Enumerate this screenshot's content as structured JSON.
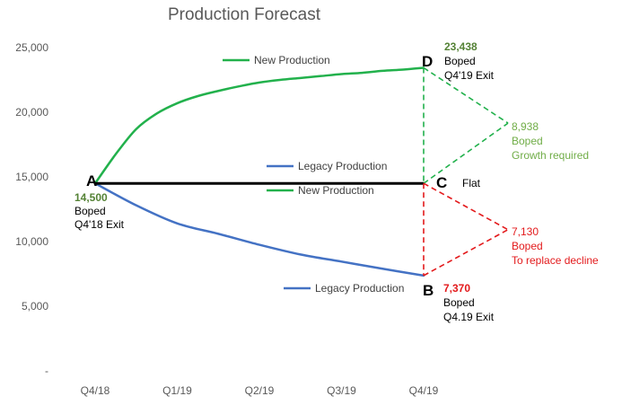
{
  "chart_data": {
    "type": "line",
    "title": "Production Forecast",
    "categories": [
      "Q4/18",
      "Q1/19",
      "Q2/19",
      "Q3/19",
      "Q4/19"
    ],
    "y_ticks": [
      "-",
      "5,000",
      "10,000",
      "15,000",
      "20,000",
      "25,000"
    ],
    "ylim": [
      0,
      25000
    ],
    "grid": false,
    "series": [
      {
        "name": "New Production",
        "color": "#22b14c",
        "x": [
          0,
          0.25,
          0.5,
          0.75,
          1,
          1.25,
          1.5,
          1.75,
          2,
          2.25,
          2.5,
          2.75,
          3,
          3.25,
          3.5,
          3.75,
          4
        ],
        "values": [
          14500,
          16750,
          18700,
          19900,
          20700,
          21250,
          21650,
          22000,
          22300,
          22500,
          22650,
          22800,
          22950,
          23050,
          23200,
          23300,
          23438
        ]
      },
      {
        "name": "Legacy Production",
        "color": "#4472c4",
        "x": [
          0,
          0.5,
          1,
          1.5,
          2,
          2.5,
          3,
          3.5,
          4
        ],
        "values": [
          14500,
          12800,
          11400,
          10600,
          9750,
          9000,
          8450,
          7900,
          7370
        ]
      },
      {
        "name": "Flat",
        "color": "#000000",
        "x": [
          0,
          4
        ],
        "values": [
          14500,
          14500
        ]
      }
    ],
    "legends": [
      {
        "text": "New Production",
        "color": "#22b14c"
      },
      {
        "text": "Legacy Production",
        "color": "#4472c4"
      },
      {
        "text": "New Production",
        "color": "#22b14c"
      },
      {
        "text": "Legacy Production",
        "color": "#4472c4"
      }
    ],
    "points": {
      "A": "A",
      "B": "B",
      "C": "C",
      "D": "D"
    },
    "annotations": {
      "a": {
        "value": "14,500",
        "line1": "Boped",
        "line2": "Q4'18 Exit"
      },
      "d": {
        "value": "23,438",
        "line1": "Boped",
        "line2": "Q4'19  Exit"
      },
      "b": {
        "value": "7,370",
        "line1": "Boped",
        "line2": "Q4.19 Exit"
      },
      "c": {
        "text": "Flat"
      },
      "growth": {
        "value": "8,938",
        "line1": "Boped",
        "line2": "Growth required",
        "color": "#70ad47"
      },
      "decline": {
        "value": "7,130",
        "line1": "Boped",
        "line2": "To replace decline",
        "color": "#e31a1c"
      }
    },
    "colors": {
      "green_dark": "#548235",
      "red": "#e31a1c",
      "axis_text": "#595959"
    }
  }
}
